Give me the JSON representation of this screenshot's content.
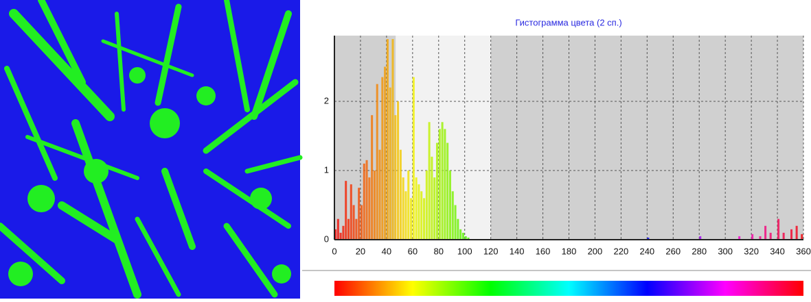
{
  "chart_data": {
    "type": "bar",
    "title": "Гистограмма цвета (2 сп.)",
    "x": [
      0,
      2,
      4,
      6,
      8,
      10,
      12,
      14,
      16,
      18,
      20,
      22,
      24,
      26,
      28,
      30,
      32,
      34,
      36,
      38,
      40,
      42,
      44,
      46,
      48,
      50,
      52,
      54,
      56,
      58,
      60,
      62,
      64,
      66,
      68,
      70,
      72,
      74,
      76,
      78,
      80,
      82,
      84,
      86,
      88,
      90,
      92,
      94,
      96,
      98,
      100,
      102,
      240,
      280,
      310,
      320,
      326,
      330,
      334,
      340,
      344,
      350,
      354,
      358
    ],
    "values": [
      0.15,
      0.3,
      0.1,
      0.2,
      0.85,
      0.3,
      0.8,
      0.5,
      0.3,
      0.75,
      0.5,
      1.1,
      1.15,
      0.9,
      1.8,
      1.0,
      2.25,
      1.3,
      2.35,
      2.5,
      2.9,
      2.2,
      2.9,
      1.8,
      2.0,
      1.3,
      0.9,
      0.7,
      1.0,
      0.6,
      2.35,
      0.9,
      0.8,
      0.7,
      0.6,
      1.0,
      1.7,
      1.2,
      0.9,
      1.4,
      1.6,
      1.7,
      1.6,
      1.4,
      1.0,
      0.7,
      0.5,
      0.3,
      0.15,
      0.1,
      0.05,
      0.03,
      0.03,
      0.05,
      0.05,
      0.08,
      0.05,
      0.2,
      0.1,
      0.3,
      0.1,
      0.15,
      0.2,
      0.08
    ],
    "xlim": [
      0,
      360
    ],
    "ylim": [
      0,
      2.95
    ],
    "xticks": [
      0,
      20,
      40,
      60,
      80,
      100,
      120,
      140,
      160,
      180,
      200,
      220,
      240,
      260,
      280,
      300,
      320,
      340,
      360
    ],
    "yticks": [
      0,
      1,
      2
    ],
    "highlight_range": [
      47,
      120
    ],
    "grid": true
  }
}
